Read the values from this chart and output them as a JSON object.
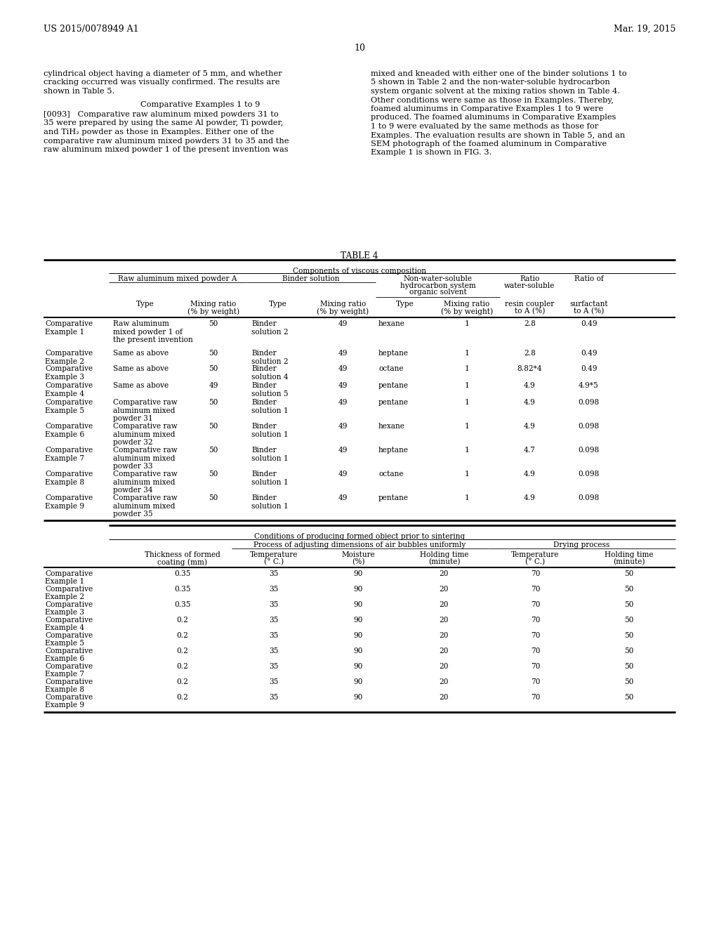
{
  "header_left": "US 2015/0078949 A1",
  "header_right": "Mar. 19, 2015",
  "page_number": "10",
  "para_left": [
    "cylindrical object having a diameter of 5 mm, and whether",
    "cracking occurred was visually confirmed. The results are",
    "shown in Table 5."
  ],
  "comp_heading": "Comparative Examples 1 to 9",
  "para_main_left": [
    "[0093]   Comparative raw aluminum mixed powders 31 to",
    "35 were prepared by using the same Al powder, Ti powder,",
    "and TiH₂ powder as those in Examples. Either one of the",
    "comparative raw aluminum mixed powders 31 to 35 and the",
    "raw aluminum mixed powder 1 of the present invention was"
  ],
  "para_right": [
    "mixed and kneaded with either one of the binder solutions 1 to",
    "5 shown in Table 2 and the non-water-soluble hydrocarbon",
    "system organic solvent at the mixing ratios shown in Table 4.",
    "Other conditions were same as those in Examples. Thereby,",
    "foamed aluminums in Comparative Examples 1 to 9 were",
    "produced. The foamed aluminums in Comparative Examples",
    "1 to 9 were evaluated by the same methods as those for",
    "Examples. The evaluation results are shown in Table 5, and an",
    "SEM photograph of the foamed aluminum in Comparative",
    "Example 1 is shown in FIG. 3."
  ],
  "table_title": "TABLE 4",
  "table1_rows": [
    [
      "Comparative\nExample 1",
      "Raw aluminum\nmixed powder 1 of\nthe present invention",
      "50",
      "Binder\nsolution 2",
      "49",
      "hexane",
      "1",
      "2.8",
      "0.49"
    ],
    [
      "Comparative\nExample 2",
      "Same as above",
      "50",
      "Binder\nsolution 2",
      "49",
      "heptane",
      "1",
      "2.8",
      "0.49"
    ],
    [
      "Comparative\nExample 3",
      "Same as above",
      "50",
      "Binder\nsolution 4",
      "49",
      "octane",
      "1",
      "8.82*4",
      "0.49"
    ],
    [
      "Comparative\nExample 4",
      "Same as above",
      "49",
      "Binder\nsolution 5",
      "49",
      "pentane",
      "1",
      "4.9",
      "4.9*5"
    ],
    [
      "Comparative\nExample 5",
      "Comparative raw\naluminum mixed\npowder 31",
      "50",
      "Binder\nsolution 1",
      "49",
      "pentane",
      "1",
      "4.9",
      "0.098"
    ],
    [
      "Comparative\nExample 6",
      "Comparative raw\naluminum mixed\npowder 32",
      "50",
      "Binder\nsolution 1",
      "49",
      "hexane",
      "1",
      "4.9",
      "0.098"
    ],
    [
      "Comparative\nExample 7",
      "Comparative raw\naluminum mixed\npowder 33",
      "50",
      "Binder\nsolution 1",
      "49",
      "heptane",
      "1",
      "4.7",
      "0.098"
    ],
    [
      "Comparative\nExample 8",
      "Comparative raw\naluminum mixed\npowder 34",
      "50",
      "Binder\nsolution 1",
      "49",
      "octane",
      "1",
      "4.9",
      "0.098"
    ],
    [
      "Comparative\nExample 9",
      "Comparative raw\naluminum mixed\npowder 35",
      "50",
      "Binder\nsolution 1",
      "49",
      "pentane",
      "1",
      "4.9",
      "0.098"
    ]
  ],
  "table2_rows": [
    [
      "Comparative\nExample 1",
      "0.35",
      "35",
      "90",
      "20",
      "70",
      "50"
    ],
    [
      "Comparative\nExample 2",
      "0.35",
      "35",
      "90",
      "20",
      "70",
      "50"
    ],
    [
      "Comparative\nExample 3",
      "0.35",
      "35",
      "90",
      "20",
      "70",
      "50"
    ],
    [
      "Comparative\nExample 4",
      "0.2",
      "35",
      "90",
      "20",
      "70",
      "50"
    ],
    [
      "Comparative\nExample 5",
      "0.2",
      "35",
      "90",
      "20",
      "70",
      "50"
    ],
    [
      "Comparative\nExample 6",
      "0.2",
      "35",
      "90",
      "20",
      "70",
      "50"
    ],
    [
      "Comparative\nExample 7",
      "0.2",
      "35",
      "90",
      "20",
      "70",
      "50"
    ],
    [
      "Comparative\nExample 8",
      "0.2",
      "35",
      "90",
      "20",
      "70",
      "50"
    ],
    [
      "Comparative\nExample 9",
      "0.2",
      "35",
      "90",
      "20",
      "70",
      "50"
    ]
  ]
}
